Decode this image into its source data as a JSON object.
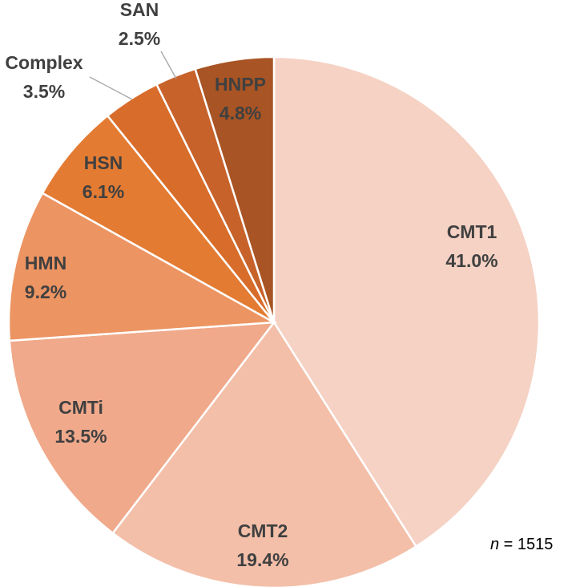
{
  "chart_data": {
    "type": "pie",
    "title": "",
    "slices": [
      {
        "label": "CMT1",
        "value": 41.0,
        "value_text": "41.0%",
        "color": "#f5d2c4"
      },
      {
        "label": "CMT2",
        "value": 19.4,
        "value_text": "19.4%",
        "color": "#f3bfa9"
      },
      {
        "label": "CMTi",
        "value": 13.5,
        "value_text": "13.5%",
        "color": "#f0a98a"
      },
      {
        "label": "HMN",
        "value": 9.2,
        "value_text": "9.2%",
        "color": "#ec9462"
      },
      {
        "label": "HSN",
        "value": 6.1,
        "value_text": "6.1%",
        "color": "#e37b32"
      },
      {
        "label": "Complex",
        "value": 3.5,
        "value_text": "3.5%",
        "color": "#d86c2a"
      },
      {
        "label": "SAN",
        "value": 2.5,
        "value_text": "2.5%",
        "color": "#c7622a"
      },
      {
        "label": "HNPP",
        "value": 4.8,
        "value_text": "4.8%",
        "color": "#a85424"
      }
    ],
    "direction": "clockwise from 12 o'clock",
    "legend": "none (labels on slices)",
    "annotation": {
      "italic": "n",
      "text": " = 1515"
    }
  }
}
